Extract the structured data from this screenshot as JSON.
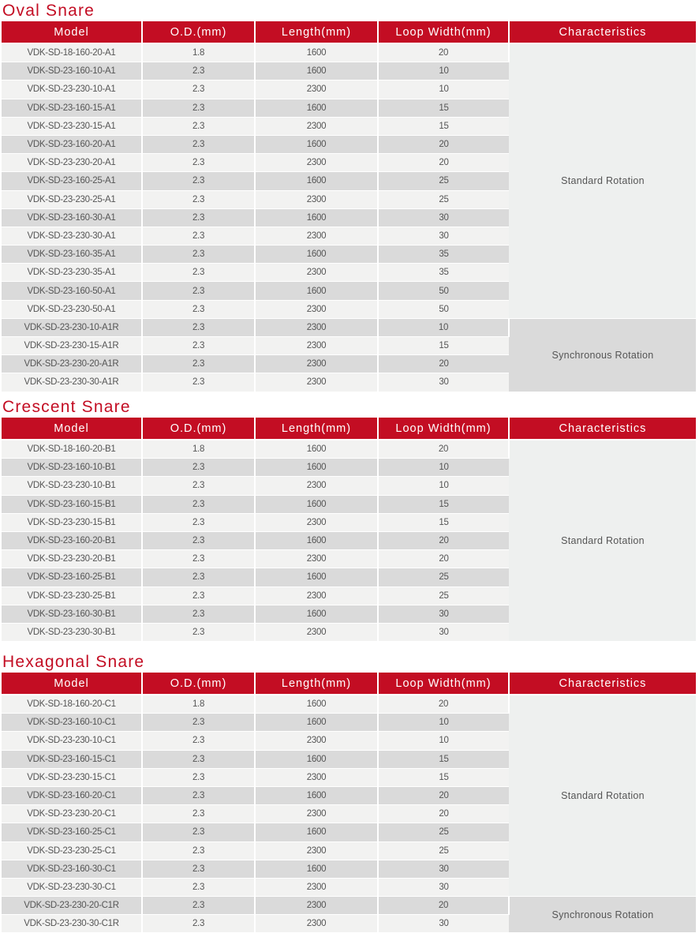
{
  "columns": [
    "Model",
    "O.D.(mm)",
    "Length(mm)",
    "Loop Width(mm)",
    "Characteristics"
  ],
  "colors": {
    "accent": "#c30d23",
    "row_light": "#f2f2f1",
    "row_dark": "#dadada"
  },
  "sections": [
    {
      "title": "Oval Snare",
      "rows": [
        [
          "VDK-SD-18-160-20-A1",
          "1.8",
          "1600",
          "20"
        ],
        [
          "VDK-SD-23-160-10-A1",
          "2.3",
          "1600",
          "10"
        ],
        [
          "VDK-SD-23-230-10-A1",
          "2.3",
          "2300",
          "10"
        ],
        [
          "VDK-SD-23-160-15-A1",
          "2.3",
          "1600",
          "15"
        ],
        [
          "VDK-SD-23-230-15-A1",
          "2.3",
          "2300",
          "15"
        ],
        [
          "VDK-SD-23-160-20-A1",
          "2.3",
          "1600",
          "20"
        ],
        [
          "VDK-SD-23-230-20-A1",
          "2.3",
          "2300",
          "20"
        ],
        [
          "VDK-SD-23-160-25-A1",
          "2.3",
          "1600",
          "25"
        ],
        [
          "VDK-SD-23-230-25-A1",
          "2.3",
          "2300",
          "25"
        ],
        [
          "VDK-SD-23-160-30-A1",
          "2.3",
          "1600",
          "30"
        ],
        [
          "VDK-SD-23-230-30-A1",
          "2.3",
          "2300",
          "30"
        ],
        [
          "VDK-SD-23-160-35-A1",
          "2.3",
          "1600",
          "35"
        ],
        [
          "VDK-SD-23-230-35-A1",
          "2.3",
          "2300",
          "35"
        ],
        [
          "VDK-SD-23-160-50-A1",
          "2.3",
          "1600",
          "50"
        ],
        [
          "VDK-SD-23-230-50-A1",
          "2.3",
          "2300",
          "50"
        ],
        [
          "VDK-SD-23-230-10-A1R",
          "2.3",
          "2300",
          "10"
        ],
        [
          "VDK-SD-23-230-15-A1R",
          "2.3",
          "2300",
          "15"
        ],
        [
          "VDK-SD-23-230-20-A1R",
          "2.3",
          "2300",
          "20"
        ],
        [
          "VDK-SD-23-230-30-A1R",
          "2.3",
          "2300",
          "30"
        ]
      ],
      "groups": [
        {
          "label": "Standard Rotation",
          "rows": 15,
          "sync": false
        },
        {
          "label": "Synchronous Rotation",
          "rows": 4,
          "sync": true
        }
      ]
    },
    {
      "title": "Crescent Snare",
      "rows": [
        [
          "VDK-SD-18-160-20-B1",
          "1.8",
          "1600",
          "20"
        ],
        [
          "VDK-SD-23-160-10-B1",
          "2.3",
          "1600",
          "10"
        ],
        [
          "VDK-SD-23-230-10-B1",
          "2.3",
          "2300",
          "10"
        ],
        [
          "VDK-SD-23-160-15-B1",
          "2.3",
          "1600",
          "15"
        ],
        [
          "VDK-SD-23-230-15-B1",
          "2.3",
          "2300",
          "15"
        ],
        [
          "VDK-SD-23-160-20-B1",
          "2.3",
          "1600",
          "20"
        ],
        [
          "VDK-SD-23-230-20-B1",
          "2.3",
          "2300",
          "20"
        ],
        [
          "VDK-SD-23-160-25-B1",
          "2.3",
          "1600",
          "25"
        ],
        [
          "VDK-SD-23-230-25-B1",
          "2.3",
          "2300",
          "25"
        ],
        [
          "VDK-SD-23-160-30-B1",
          "2.3",
          "1600",
          "30"
        ],
        [
          "VDK-SD-23-230-30-B1",
          "2.3",
          "2300",
          "30"
        ]
      ],
      "groups": [
        {
          "label": "Standard Rotation",
          "rows": 11,
          "sync": false
        }
      ]
    },
    {
      "title": "Hexagonal Snare",
      "rows": [
        [
          "VDK-SD-18-160-20-C1",
          "1.8",
          "1600",
          "20"
        ],
        [
          "VDK-SD-23-160-10-C1",
          "2.3",
          "1600",
          "10"
        ],
        [
          "VDK-SD-23-230-10-C1",
          "2.3",
          "2300",
          "10"
        ],
        [
          "VDK-SD-23-160-15-C1",
          "2.3",
          "1600",
          "15"
        ],
        [
          "VDK-SD-23-230-15-C1",
          "2.3",
          "2300",
          "15"
        ],
        [
          "VDK-SD-23-160-20-C1",
          "2.3",
          "1600",
          "20"
        ],
        [
          "VDK-SD-23-230-20-C1",
          "2.3",
          "2300",
          "20"
        ],
        [
          "VDK-SD-23-160-25-C1",
          "2.3",
          "1600",
          "25"
        ],
        [
          "VDK-SD-23-230-25-C1",
          "2.3",
          "2300",
          "25"
        ],
        [
          "VDK-SD-23-160-30-C1",
          "2.3",
          "1600",
          "30"
        ],
        [
          "VDK-SD-23-230-30-C1",
          "2.3",
          "2300",
          "30"
        ],
        [
          "VDK-SD-23-230-20-C1R",
          "2.3",
          "2300",
          "20"
        ],
        [
          "VDK-SD-23-230-30-C1R",
          "2.3",
          "2300",
          "30"
        ]
      ],
      "groups": [
        {
          "label": "Standard Rotation",
          "rows": 11,
          "sync": false
        },
        {
          "label": "Synchronous Rotation",
          "rows": 2,
          "sync": true
        }
      ]
    }
  ]
}
